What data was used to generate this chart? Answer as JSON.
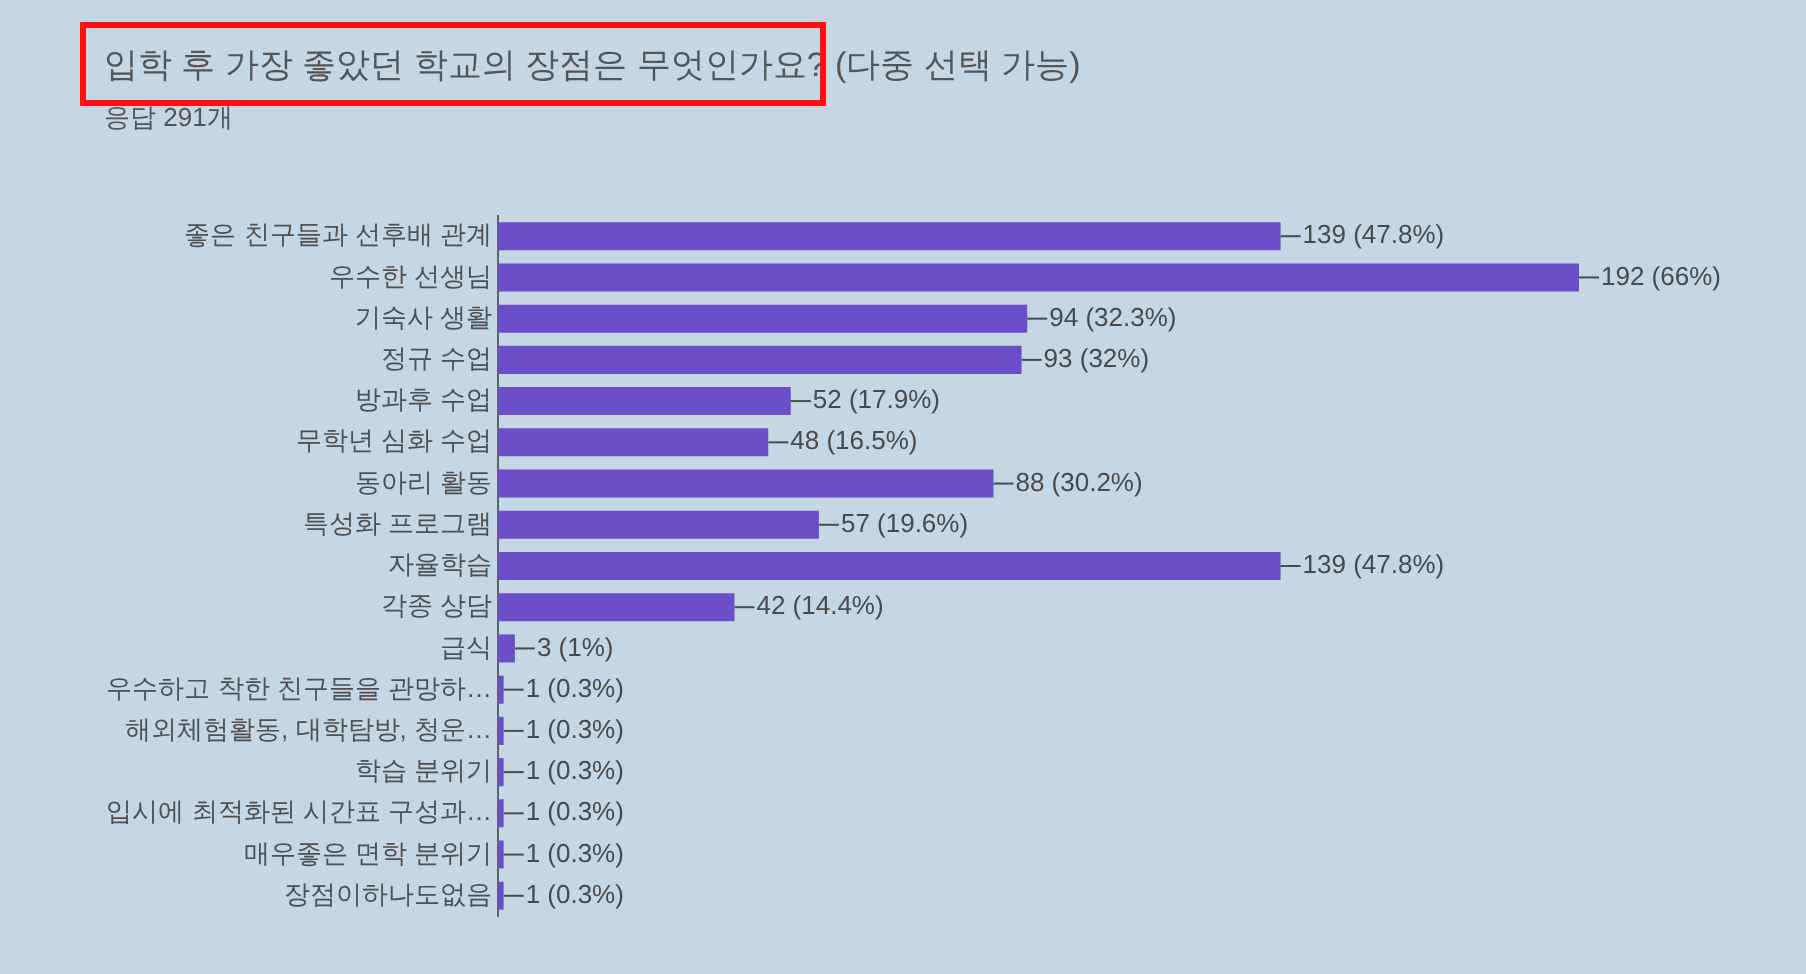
{
  "chart_data": {
    "type": "bar",
    "orientation": "horizontal",
    "title": "입학 후 가장 좋았던 학교의 장점은 무엇인가요? (다중 선택 가능)",
    "subtitle": "응답 291개",
    "color": "#6a4fc8",
    "categories": [
      "좋은 친구들과 선후배 관계",
      "우수한 선생님",
      "기숙사 생활",
      "정규 수업",
      "방과후 수업",
      "무학년 심화 수업",
      "동아리 활동",
      "특성화 프로그램",
      "자율학습",
      "각종 상담",
      "급식",
      "우수하고 착한 친구들을 관망하…",
      "해외체험활동, 대학탐방, 청운…",
      "학습 분위기",
      "입시에 최적화된 시간표 구성과…",
      "매우좋은 면학 분위기",
      "장점이하나도없음"
    ],
    "values": [
      139,
      192,
      94,
      93,
      52,
      48,
      88,
      57,
      139,
      42,
      3,
      1,
      1,
      1,
      1,
      1,
      1
    ],
    "value_labels": [
      "139 (47.8%)",
      "192 (66%)",
      "94 (32.3%)",
      "93 (32%)",
      "52 (17.9%)",
      "48 (16.5%)",
      "88 (30.2%)",
      "57 (19.6%)",
      "139 (47.8%)",
      "42 (14.4%)",
      "3 (1%)",
      "1 (0.3%)",
      "1 (0.3%)",
      "1 (0.3%)",
      "1 (0.3%)",
      "1 (0.3%)",
      "1 (0.3%)"
    ]
  }
}
